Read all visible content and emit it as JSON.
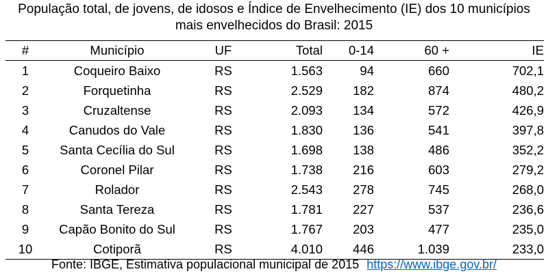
{
  "title": {
    "line1": "População total, de jovens, de idosos e Índice de Envelhecimento (IE) dos 10 municípios",
    "line2": "mais envelhecidos do Brasil: 2015"
  },
  "headers": [
    "#",
    "Município",
    "UF",
    "Total",
    "0-14",
    "60 +",
    "IE"
  ],
  "rows": [
    [
      "1",
      "Coqueiro Baixo",
      "RS",
      "1.563",
      "94",
      "660",
      "702,1"
    ],
    [
      "2",
      "Forquetinha",
      "RS",
      "2.529",
      "182",
      "874",
      "480,2"
    ],
    [
      "3",
      "Cruzaltense",
      "RS",
      "2.093",
      "134",
      "572",
      "426,9"
    ],
    [
      "4",
      "Canudos do Vale",
      "RS",
      "1.830",
      "136",
      "541",
      "397,8"
    ],
    [
      "5",
      "Santa Cecília do Sul",
      "RS",
      "1.698",
      "138",
      "486",
      "352,2"
    ],
    [
      "6",
      "Coronel Pilar",
      "RS",
      "1.738",
      "216",
      "603",
      "279,2"
    ],
    [
      "7",
      "Rolador",
      "RS",
      "2.543",
      "278",
      "745",
      "268,0"
    ],
    [
      "8",
      "Santa Tereza",
      "RS",
      "1.781",
      "227",
      "537",
      "236,6"
    ],
    [
      "9",
      "Capão Bonito do Sul",
      "RS",
      "1.767",
      "203",
      "477",
      "235,0"
    ],
    [
      "10",
      "Cotiporã",
      "RS",
      "4.010",
      "446",
      "1.039",
      "233,0"
    ]
  ],
  "source": {
    "text": "Fonte: IBGE, Estimativa populacional municipal de 2015",
    "link": "https://www.ibge.gov.br/"
  },
  "colors": {
    "link": "#0563c1",
    "text": "#000000",
    "background": "#ffffff"
  }
}
